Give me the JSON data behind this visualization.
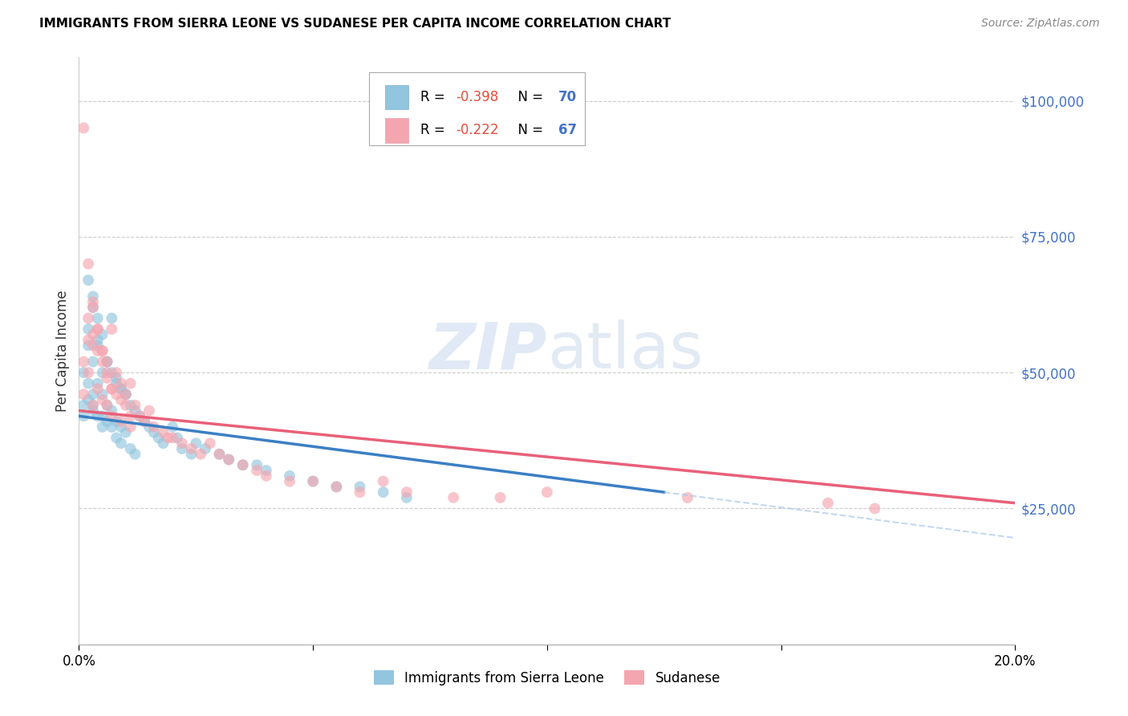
{
  "title": "IMMIGRANTS FROM SIERRA LEONE VS SUDANESE PER CAPITA INCOME CORRELATION CHART",
  "source": "Source: ZipAtlas.com",
  "ylabel": "Per Capita Income",
  "yticks": [
    0,
    25000,
    50000,
    75000,
    100000
  ],
  "ytick_labels": [
    "",
    "$25,000",
    "$50,000",
    "$75,000",
    "$100,000"
  ],
  "xmin": 0.0,
  "xmax": 0.2,
  "ymin": 0,
  "ymax": 108000,
  "color_blue": "#92c5de",
  "color_pink": "#f4a6b0",
  "color_blue_line": "#3b7fc4",
  "color_pink_line": "#e8607a",
  "color_blue_dash": "#a8c8e8",
  "blue_line_x_end": 0.125,
  "blue_scatter_x": [
    0.001,
    0.001,
    0.002,
    0.002,
    0.002,
    0.003,
    0.003,
    0.003,
    0.003,
    0.004,
    0.004,
    0.004,
    0.005,
    0.005,
    0.005,
    0.006,
    0.006,
    0.007,
    0.007,
    0.008,
    0.008,
    0.009,
    0.009,
    0.01,
    0.01,
    0.011,
    0.012,
    0.013,
    0.014,
    0.015,
    0.016,
    0.017,
    0.018,
    0.02,
    0.021,
    0.022,
    0.024,
    0.025,
    0.027,
    0.03,
    0.032,
    0.035,
    0.038,
    0.04,
    0.045,
    0.05,
    0.055,
    0.06,
    0.065,
    0.07,
    0.002,
    0.003,
    0.004,
    0.004,
    0.005,
    0.006,
    0.007,
    0.008,
    0.009,
    0.01,
    0.001,
    0.002,
    0.003,
    0.005,
    0.006,
    0.007,
    0.008,
    0.009,
    0.011,
    0.012
  ],
  "blue_scatter_y": [
    50000,
    44000,
    58000,
    55000,
    48000,
    62000,
    52000,
    46000,
    43000,
    55000,
    48000,
    42000,
    50000,
    46000,
    40000,
    52000,
    44000,
    50000,
    43000,
    48000,
    41000,
    47000,
    40000,
    46000,
    39000,
    44000,
    43000,
    42000,
    41000,
    40000,
    39000,
    38000,
    37000,
    40000,
    38000,
    36000,
    35000,
    37000,
    36000,
    35000,
    34000,
    33000,
    33000,
    32000,
    31000,
    30000,
    29000,
    29000,
    28000,
    27000,
    67000,
    64000,
    60000,
    56000,
    57000,
    52000,
    60000,
    49000,
    47000,
    46000,
    42000,
    45000,
    44000,
    42000,
    41000,
    40000,
    38000,
    37000,
    36000,
    35000
  ],
  "pink_scatter_x": [
    0.001,
    0.001,
    0.002,
    0.002,
    0.003,
    0.003,
    0.003,
    0.004,
    0.004,
    0.005,
    0.005,
    0.006,
    0.006,
    0.007,
    0.007,
    0.008,
    0.009,
    0.009,
    0.01,
    0.011,
    0.011,
    0.012,
    0.013,
    0.014,
    0.015,
    0.016,
    0.018,
    0.019,
    0.02,
    0.022,
    0.024,
    0.026,
    0.028,
    0.03,
    0.032,
    0.035,
    0.038,
    0.04,
    0.045,
    0.05,
    0.055,
    0.06,
    0.065,
    0.07,
    0.08,
    0.09,
    0.1,
    0.13,
    0.16,
    0.17,
    0.002,
    0.003,
    0.004,
    0.005,
    0.006,
    0.007,
    0.008,
    0.009,
    0.01,
    0.011,
    0.001,
    0.002,
    0.003,
    0.004,
    0.005,
    0.006,
    0.007
  ],
  "pink_scatter_y": [
    52000,
    46000,
    56000,
    50000,
    62000,
    55000,
    44000,
    58000,
    47000,
    54000,
    45000,
    52000,
    44000,
    58000,
    42000,
    50000,
    48000,
    41000,
    46000,
    48000,
    40000,
    44000,
    42000,
    41000,
    43000,
    40000,
    39000,
    38000,
    38000,
    37000,
    36000,
    35000,
    37000,
    35000,
    34000,
    33000,
    32000,
    31000,
    30000,
    30000,
    29000,
    28000,
    30000,
    28000,
    27000,
    27000,
    28000,
    27000,
    26000,
    25000,
    60000,
    57000,
    54000,
    52000,
    49000,
    47000,
    46000,
    45000,
    44000,
    42000,
    95000,
    70000,
    63000,
    58000,
    54000,
    50000,
    47000
  ]
}
